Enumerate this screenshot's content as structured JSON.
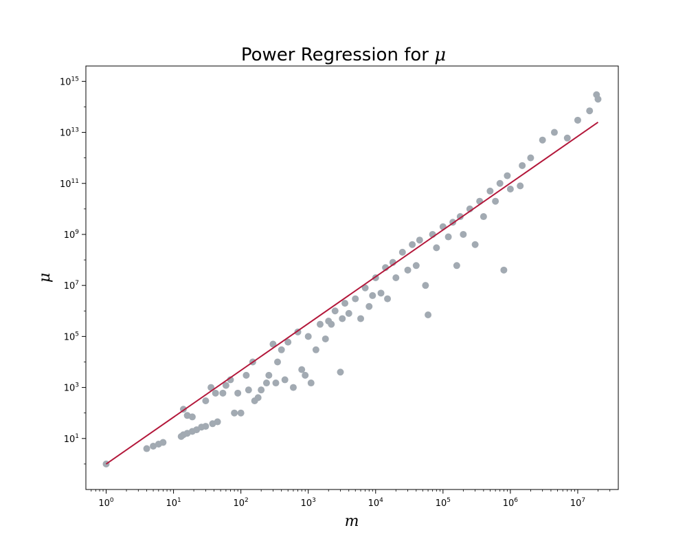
{
  "chart_data": {
    "type": "scatter",
    "title": "Power Regression for ",
    "title_symbol": "μ",
    "xlabel": "m",
    "ylabel": "μ",
    "xscale": "log",
    "yscale": "log",
    "xlim": [
      0.5,
      40000000
    ],
    "ylim": [
      0.1,
      4000000000000000
    ],
    "grid": false,
    "x_ticks": [
      {
        "base": "10",
        "exp": "0"
      },
      {
        "base": "10",
        "exp": "1"
      },
      {
        "base": "10",
        "exp": "2"
      },
      {
        "base": "10",
        "exp": "3"
      },
      {
        "base": "10",
        "exp": "4"
      },
      {
        "base": "10",
        "exp": "5"
      },
      {
        "base": "10",
        "exp": "6"
      },
      {
        "base": "10",
        "exp": "7"
      }
    ],
    "y_ticks": [
      {
        "base": "10",
        "exp": "1"
      },
      {
        "base": "10",
        "exp": "3"
      },
      {
        "base": "10",
        "exp": "5"
      },
      {
        "base": "10",
        "exp": "7"
      },
      {
        "base": "10",
        "exp": "9"
      },
      {
        "base": "10",
        "exp": "11"
      },
      {
        "base": "10",
        "exp": "13"
      },
      {
        "base": "10",
        "exp": "15"
      }
    ],
    "colors": {
      "points": "#a2aab2",
      "fit": "#b3173a"
    },
    "series": [
      {
        "kind": "scatter",
        "points": [
          [
            1,
            1
          ],
          [
            4,
            4
          ],
          [
            5,
            5
          ],
          [
            6,
            6
          ],
          [
            7,
            7
          ],
          [
            13,
            12
          ],
          [
            14,
            14
          ],
          [
            16,
            16
          ],
          [
            19,
            19
          ],
          [
            22,
            22
          ],
          [
            26,
            28
          ],
          [
            30,
            30
          ],
          [
            38,
            38
          ],
          [
            45,
            45
          ],
          [
            14,
            140
          ],
          [
            16,
            80
          ],
          [
            19,
            70
          ],
          [
            30,
            300
          ],
          [
            36,
            1000
          ],
          [
            42,
            600
          ],
          [
            54,
            600
          ],
          [
            60,
            1200
          ],
          [
            70,
            2000
          ],
          [
            80,
            100
          ],
          [
            90,
            600
          ],
          [
            100,
            100
          ],
          [
            120,
            3000
          ],
          [
            130,
            800
          ],
          [
            150,
            10000
          ],
          [
            160,
            300
          ],
          [
            180,
            400
          ],
          [
            200,
            800
          ],
          [
            240,
            1500
          ],
          [
            260,
            3000
          ],
          [
            300,
            50000
          ],
          [
            330,
            1500
          ],
          [
            350,
            10000
          ],
          [
            400,
            30000
          ],
          [
            450,
            2000
          ],
          [
            500,
            60000
          ],
          [
            600,
            1000
          ],
          [
            700,
            150000
          ],
          [
            800,
            5000
          ],
          [
            900,
            3000
          ],
          [
            1000,
            100000
          ],
          [
            1100,
            1500
          ],
          [
            1300,
            30000
          ],
          [
            1500,
            300000
          ],
          [
            1800,
            80000
          ],
          [
            2000,
            400000
          ],
          [
            2200,
            300000
          ],
          [
            2500,
            1000000
          ],
          [
            3000,
            4000
          ],
          [
            3200,
            500000
          ],
          [
            3500,
            2000000
          ],
          [
            4000,
            800000
          ],
          [
            5000,
            3000000
          ],
          [
            6000,
            500000
          ],
          [
            7000,
            8000000
          ],
          [
            8000,
            1500000
          ],
          [
            9000,
            4000000
          ],
          [
            10000,
            20000000
          ],
          [
            12000,
            5000000
          ],
          [
            14000,
            50000000
          ],
          [
            15000,
            3000000
          ],
          [
            18000,
            80000000
          ],
          [
            20000,
            20000000
          ],
          [
            25000,
            200000000
          ],
          [
            30000,
            40000000
          ],
          [
            35000,
            400000000
          ],
          [
            40000,
            60000000
          ],
          [
            45000,
            600000000
          ],
          [
            55000,
            10000000
          ],
          [
            60000,
            700000
          ],
          [
            70000,
            1000000000
          ],
          [
            80000,
            300000000
          ],
          [
            100000,
            2000000000
          ],
          [
            120000,
            800000000
          ],
          [
            140000,
            3000000000
          ],
          [
            160000,
            60000000
          ],
          [
            180000,
            5000000000
          ],
          [
            200000,
            1000000000
          ],
          [
            250000,
            10000000000
          ],
          [
            300000,
            400000000
          ],
          [
            350000,
            20000000000
          ],
          [
            400000,
            5000000000
          ],
          [
            500000,
            50000000000
          ],
          [
            600000,
            20000000000
          ],
          [
            700000,
            100000000000
          ],
          [
            800000,
            40000000
          ],
          [
            900000,
            200000000000
          ],
          [
            1000000,
            60000000000
          ],
          [
            1400000,
            80000000000
          ],
          [
            1500000,
            500000000000
          ],
          [
            2000000,
            1000000000000
          ],
          [
            3000000,
            5000000000000
          ],
          [
            4500000,
            10000000000000
          ],
          [
            7000000,
            6000000000000
          ],
          [
            10000000,
            30000000000000
          ],
          [
            15000000,
            70000000000000
          ],
          [
            19000000,
            300000000000000
          ],
          [
            20000000,
            200000000000000
          ]
        ]
      },
      {
        "kind": "line",
        "points": [
          [
            1,
            1
          ],
          [
            20000000,
            25000000000000
          ]
        ]
      }
    ]
  }
}
